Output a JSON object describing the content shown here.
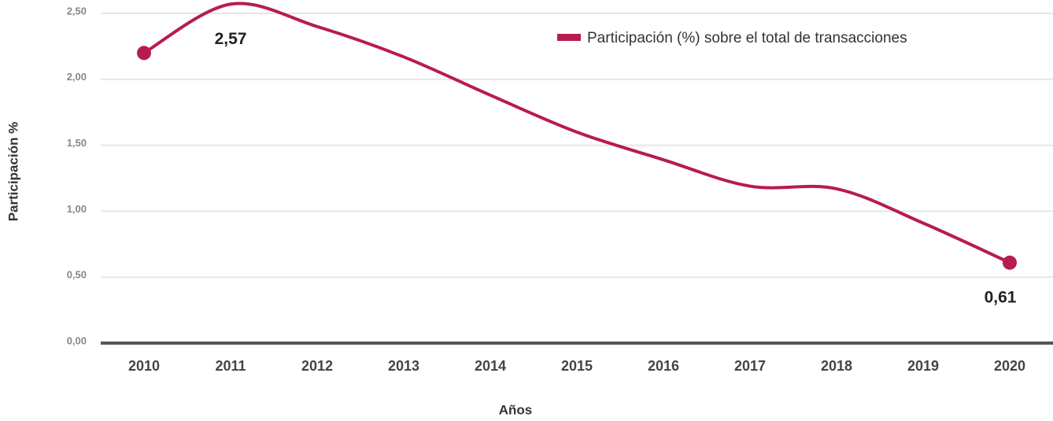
{
  "chart_data": {
    "type": "line",
    "categories": [
      "2010",
      "2011",
      "2012",
      "2013",
      "2014",
      "2015",
      "2016",
      "2017",
      "2018",
      "2019",
      "2020"
    ],
    "series": [
      {
        "name": "Participación (%) sobre el total de transacciones",
        "color": "#b71c4f",
        "values": [
          2.2,
          2.57,
          2.4,
          2.17,
          1.88,
          1.6,
          1.39,
          1.19,
          1.17,
          0.91,
          0.61
        ],
        "value_labels": [
          null,
          "2,57",
          null,
          null,
          null,
          null,
          null,
          null,
          null,
          null,
          "0,61"
        ]
      }
    ],
    "ylim": [
      0,
      2.5
    ],
    "yticks": [
      {
        "value": 0,
        "label": "0,00"
      },
      {
        "value": 0.5,
        "label": "0,50"
      },
      {
        "value": 1,
        "label": "1,00"
      },
      {
        "value": 1.5,
        "label": "1,50"
      },
      {
        "value": 2,
        "label": "2,00"
      },
      {
        "value": 2.5,
        "label": "2,50"
      }
    ],
    "y_label": "Participación %",
    "x_label": "Años",
    "grid": true,
    "legend": "top-right"
  }
}
